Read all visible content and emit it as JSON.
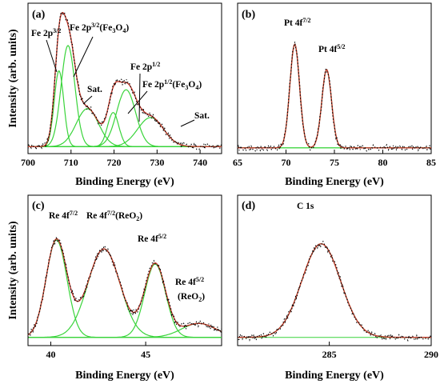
{
  "colors": {
    "raw": "#000000",
    "fit": "#c0392b",
    "component": "#39d43a",
    "baseline": "#39d43a"
  },
  "figure": {
    "ylabel": "Intensity (arb. units)"
  },
  "chart_data": [
    {
      "panel": "(a)",
      "type": "line",
      "title": "",
      "xlabel": "Binding Energy (eV)",
      "ylabel": "Intensity (arb. units)",
      "xlim": [
        700,
        745
      ],
      "xticks": [
        "700",
        "710",
        "720",
        "730",
        "740"
      ],
      "ylim": [
        0,
        1
      ],
      "grid": false,
      "components": [
        {
          "center": 707.2,
          "width": 1.1,
          "height": 0.6
        },
        {
          "center": 709.3,
          "width": 1.6,
          "height": 0.8
        },
        {
          "center": 713.8,
          "width": 2.6,
          "height": 0.3
        },
        {
          "center": 719.8,
          "width": 1.3,
          "height": 0.27
        },
        {
          "center": 722.8,
          "width": 2.2,
          "height": 0.45
        },
        {
          "center": 728.5,
          "width": 3.0,
          "height": 0.23
        }
      ],
      "baseline": [
        0.03,
        0.03
      ],
      "annotations": [
        {
          "main": "Fe 2p",
          "sup": "3/2",
          "rest": ""
        },
        {
          "main": "Fe 2p",
          "sup": "3/2",
          "rest": "(Fe",
          "sub": "3",
          "rest2": "O",
          "sub2": "4",
          "rest3": ")"
        },
        {
          "main": "Sat.",
          "sup": "",
          "rest": ""
        },
        {
          "main": "Fe 2p",
          "sup": "1/2",
          "rest": ""
        },
        {
          "main": "Fe 2p",
          "sup": "1/2",
          "rest": "(Fe",
          "sub": "3",
          "rest2": "O",
          "sub2": "4",
          "rest3": ")"
        },
        {
          "main": "Sat.",
          "sup": "",
          "rest": ""
        }
      ]
    },
    {
      "panel": "(b)",
      "type": "line",
      "title": "",
      "xlabel": "Binding Energy (eV)",
      "ylabel": "",
      "xlim": [
        65,
        85
      ],
      "xticks": [
        "65",
        "70",
        "75",
        "80",
        "85"
      ],
      "ylim": [
        0,
        1
      ],
      "grid": false,
      "components": [
        {
          "center": 70.9,
          "width": 0.5,
          "height": 0.82
        },
        {
          "center": 74.2,
          "width": 0.5,
          "height": 0.62
        }
      ],
      "baseline": [
        0.02,
        0.02
      ],
      "annotations": [
        {
          "main": "Pt 4f",
          "sup": "7/2",
          "rest": ""
        },
        {
          "main": "Pt 4f",
          "sup": "5/2",
          "rest": ""
        }
      ]
    },
    {
      "panel": "(c)",
      "type": "line",
      "title": "",
      "xlabel": "Binding Energy (eV)",
      "ylabel": "Intensity (arb. units)",
      "xlim": [
        38.8,
        49.0
      ],
      "xticks": [
        "40",
        "45"
      ],
      "ylim": [
        0,
        1
      ],
      "grid": false,
      "components": [
        {
          "center": 40.3,
          "width": 0.55,
          "height": 0.77
        },
        {
          "center": 42.8,
          "width": 0.85,
          "height": 0.7
        },
        {
          "center": 45.5,
          "width": 0.55,
          "height": 0.58
        },
        {
          "center": 47.8,
          "width": 0.9,
          "height": 0.11
        }
      ],
      "baseline": [
        0.04,
        0.04
      ],
      "annotations": [
        {
          "main": "Re 4f",
          "sup": "7/2",
          "rest": ""
        },
        {
          "main": "Re 4f",
          "sup": "7/2",
          "rest": "(ReO",
          "sub": "2",
          "rest2": ")"
        },
        {
          "main": "Re 4f",
          "sup": "5/2",
          "rest": ""
        },
        {
          "main": "Re 4f",
          "sup": "5/2",
          "rest": ""
        },
        {
          "main": "(ReO",
          "sup": "",
          "rest": "",
          "sub": "2",
          "rest2": ")"
        }
      ]
    },
    {
      "panel": "(d)",
      "type": "line",
      "title": "",
      "xlabel": "Binding Energy (eV)",
      "ylabel": "",
      "xlim": [
        280.5,
        290
      ],
      "xticks": [
        "285",
        "290"
      ],
      "ylim": [
        0,
        1
      ],
      "grid": false,
      "components": [
        {
          "center": 284.6,
          "width": 0.95,
          "height": 0.74
        }
      ],
      "baseline": [
        0.04,
        0.04
      ],
      "annotations": [
        {
          "main": "C 1s",
          "sup": "",
          "rest": ""
        }
      ]
    }
  ]
}
